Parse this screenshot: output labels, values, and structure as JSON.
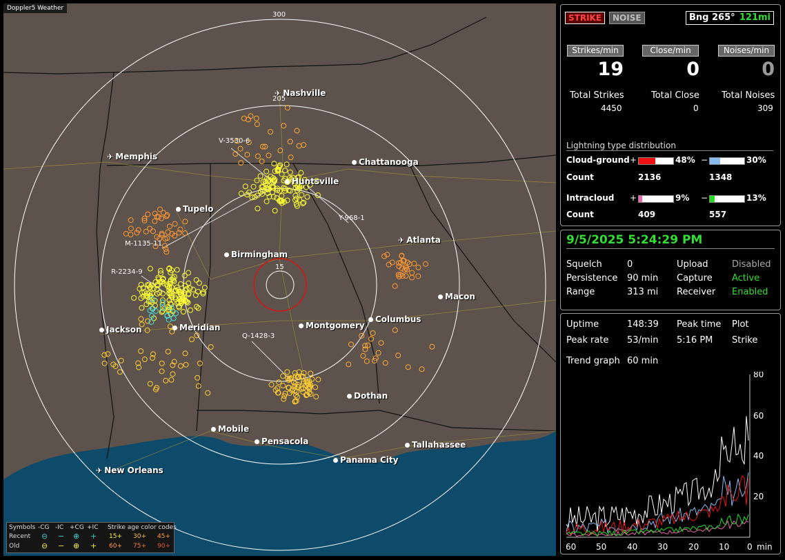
{
  "app_title": "Doppler5 Weather",
  "map": {
    "range_labels": [
      "300",
      "205",
      "15"
    ],
    "cities": [
      {
        "name": "Nashville",
        "icon": "plane"
      },
      {
        "name": "Memphis",
        "icon": "plane"
      },
      {
        "name": "Chattanooga",
        "icon": "dot"
      },
      {
        "name": "Huntsville",
        "icon": "dot"
      },
      {
        "name": "Tupelo",
        "icon": "dot"
      },
      {
        "name": "Atlanta",
        "icon": "plane"
      },
      {
        "name": "Birmingham",
        "icon": "dot"
      },
      {
        "name": "Macon",
        "icon": "dot"
      },
      {
        "name": "Jackson",
        "icon": "dot"
      },
      {
        "name": "Meridian",
        "icon": "dot"
      },
      {
        "name": "Montgomery",
        "icon": "dot"
      },
      {
        "name": "Columbus",
        "icon": "dot"
      },
      {
        "name": "Dothan",
        "icon": "dot"
      },
      {
        "name": "Mobile",
        "icon": "dot"
      },
      {
        "name": "Pensacola",
        "icon": "dot"
      },
      {
        "name": "Tallahassee",
        "icon": "dot"
      },
      {
        "name": "Panama City",
        "icon": "dot"
      },
      {
        "name": "New Orleans",
        "icon": "plane"
      }
    ],
    "storm_labels": [
      "V-3530-6",
      "Y-968-1",
      "M-1135-11",
      "R-2234-9",
      "Q-1428-3"
    ]
  },
  "legend": {
    "symbols_label": "Symbols",
    "headers": [
      "-CG",
      "-IC",
      "+CG",
      "+IC"
    ],
    "age_title": "Strike age color codes",
    "recent_label": "Recent",
    "old_label": "Old",
    "recent_ages": [
      "15+",
      "30+",
      "45+"
    ],
    "old_ages": [
      "60+",
      "75+",
      "90+"
    ]
  },
  "stats": {
    "mode_strike": "STRIKE",
    "mode_noise": "NOISE",
    "bearing": "Bng 265°",
    "distance": "121mi",
    "strikes_per_min_label": "Strikes/min",
    "close_per_min_label": "Close/min",
    "noises_per_min_label": "Noises/min",
    "strikes_per_min": "19",
    "close_per_min": "0",
    "noises_per_min": "0",
    "total_strikes_label": "Total Strikes",
    "total_close_label": "Total Close",
    "total_noises_label": "Total Noises",
    "total_strikes": "4450",
    "total_close": "0",
    "total_noises": "309",
    "dist_title": "Lightning type distribution",
    "cg_label": "Cloud-ground",
    "ic_label": "Intracloud",
    "count_label": "Count",
    "plus": "+",
    "minus": "−",
    "cg_pos_pct": "48%",
    "cg_neg_pct": "30%",
    "cg_pos_count": "2136",
    "cg_neg_count": "1348",
    "ic_pos_pct": "9%",
    "ic_neg_pct": "13%",
    "ic_pos_count": "409",
    "ic_neg_count": "557",
    "cg_pos_frac": 0.48,
    "cg_neg_frac": 0.3,
    "ic_pos_frac": 0.09,
    "ic_neg_frac": 0.13
  },
  "status": {
    "datetime": "9/5/2025 5:24:29 PM",
    "squelch_label": "Squelch",
    "squelch": "0",
    "upload_label": "Upload",
    "upload": "Disabled",
    "persistence_label": "Persistence",
    "persistence": "90 min",
    "capture_label": "Capture",
    "capture": "Active",
    "range_label": "Range",
    "range": "313 mi",
    "receiver_label": "Receiver",
    "receiver": "Enabled"
  },
  "trend": {
    "uptime_label": "Uptime",
    "uptime": "148:39",
    "peak_time_label": "Peak time",
    "peak_time": "5:16 PM",
    "plot_label": "Plot",
    "plot": "Strike",
    "peak_rate_label": "Peak rate",
    "peak_rate": "53/min",
    "trend_graph_label": "Trend graph",
    "trend_graph": "60 min",
    "y_ticks": [
      "80",
      "60",
      "40",
      "20"
    ],
    "x_ticks": [
      "60",
      "50",
      "40",
      "30",
      "20",
      "10",
      "0"
    ],
    "x_unit": "min"
  },
  "colors": {
    "strike_red": "#cc0000",
    "accent_green": "#33dd33",
    "cg_pos": "#ee1111",
    "cg_neg": "#88bbee",
    "ic_pos": "#ee66aa",
    "ic_neg": "#22dd22"
  }
}
